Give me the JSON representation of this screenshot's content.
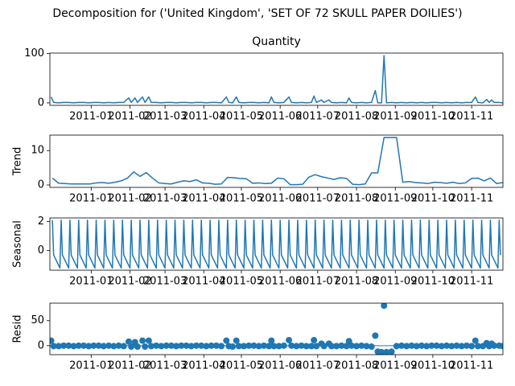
{
  "title": "Decomposition for ('United Kingdom', 'SET OF 72 SKULL PAPER  DOILIES')",
  "chart_data": [
    {
      "type": "line",
      "title": "Quantity",
      "color": "#1f77b4",
      "x": [
        -1,
        1,
        5,
        9,
        13,
        17,
        21,
        25,
        29,
        33,
        37,
        41,
        45,
        49,
        53,
        57,
        61,
        63,
        66,
        68,
        72,
        74,
        77,
        79,
        83,
        87,
        91,
        95,
        99,
        103,
        107,
        111,
        115,
        119,
        123,
        127,
        131,
        135,
        139,
        141,
        144,
        147,
        149,
        153,
        157,
        161,
        165,
        169,
        173,
        175,
        177,
        181,
        185,
        189,
        191,
        195,
        199,
        203,
        207,
        209,
        211,
        215,
        217,
        221,
        223,
        227,
        231,
        235,
        237,
        239,
        243,
        247,
        251,
        255,
        258,
        260,
        263,
        265,
        267,
        271,
        275,
        279,
        283,
        287,
        291,
        295,
        299,
        303,
        307,
        311,
        315,
        319,
        323,
        327,
        331,
        335,
        338,
        340,
        344,
        347,
        349,
        351,
        353,
        357,
        360
      ],
      "values": [
        12,
        1,
        0,
        1,
        1,
        0,
        1,
        1,
        0,
        1,
        1,
        0,
        1,
        0,
        1,
        1,
        10,
        1,
        10,
        1,
        12,
        1,
        12,
        1,
        1,
        0,
        1,
        1,
        0,
        1,
        1,
        0,
        1,
        1,
        0,
        1,
        1,
        0,
        12,
        1,
        0,
        12,
        1,
        0,
        1,
        1,
        0,
        1,
        0,
        12,
        1,
        0,
        1,
        12,
        1,
        0,
        1,
        0,
        1,
        14,
        1,
        6,
        1,
        6,
        1,
        0,
        1,
        0,
        10,
        1,
        0,
        1,
        0,
        1,
        25,
        0,
        0,
        96,
        0,
        1,
        0,
        1,
        0,
        1,
        0,
        1,
        0,
        1,
        1,
        0,
        1,
        0,
        1,
        0,
        1,
        1,
        12,
        1,
        0,
        7,
        1,
        6,
        1,
        1,
        0
      ],
      "xlim": [
        -2,
        360
      ],
      "ylim": [
        -5,
        101
      ],
      "yticks": [
        0,
        100
      ],
      "xticks": [
        {
          "value": 31,
          "label": "2011-01"
        },
        {
          "value": 62,
          "label": "2011-02"
        },
        {
          "value": 90,
          "label": "2011-03"
        },
        {
          "value": 121,
          "label": "2011-04"
        },
        {
          "value": 151,
          "label": "2011-05"
        },
        {
          "value": 182,
          "label": "2011-06"
        },
        {
          "value": 212,
          "label": "2011-07"
        },
        {
          "value": 243,
          "label": "2011-08"
        },
        {
          "value": 274,
          "label": "2011-09"
        },
        {
          "value": 304,
          "label": "2011-10"
        },
        {
          "value": 335,
          "label": "2011-11"
        }
      ]
    },
    {
      "type": "line",
      "ylabel": "Trend",
      "color": "#1f77b4",
      "x": [
        0,
        5,
        10,
        15,
        20,
        25,
        30,
        35,
        40,
        45,
        50,
        55,
        60,
        65,
        70,
        75,
        80,
        85,
        90,
        95,
        100,
        105,
        110,
        115,
        120,
        125,
        130,
        135,
        140,
        145,
        150,
        155,
        160,
        165,
        170,
        175,
        180,
        185,
        190,
        195,
        200,
        205,
        210,
        215,
        220,
        225,
        230,
        235,
        240,
        245,
        250,
        255,
        260,
        265,
        270,
        275,
        280,
        285,
        290,
        295,
        300,
        305,
        310,
        315,
        320,
        325,
        330,
        335,
        340,
        345,
        350,
        355,
        360
      ],
      "values": [
        2,
        0.5,
        0.4,
        0.3,
        0.3,
        0.3,
        0.3,
        0.6,
        0.7,
        0.5,
        0.8,
        1.2,
        2.0,
        3.8,
        2.5,
        3.6,
        2.0,
        0.6,
        0.4,
        0.3,
        0.8,
        1.2,
        1.0,
        1.5,
        0.6,
        0.5,
        0.2,
        0.3,
        2.2,
        2.1,
        1.9,
        1.8,
        0.5,
        0.6,
        0.4,
        0.5,
        2.0,
        1.8,
        0.1,
        0.1,
        0.2,
        2.3,
        3.0,
        2.4,
        2.0,
        1.6,
        2.1,
        1.9,
        0.2,
        0.1,
        0.3,
        3.5,
        3.5,
        13.8,
        13.8,
        13.8,
        0.8,
        1.0,
        0.7,
        0.6,
        0.4,
        0.8,
        0.7,
        0.5,
        0.8,
        0.4,
        0.6,
        1.9,
        2.0,
        1.2,
        2.0,
        0.4,
        0.7
      ],
      "xlim": [
        -2,
        360
      ],
      "ylim": [
        -0.7,
        14.5
      ],
      "yticks": [
        0,
        10
      ],
      "xticks": [
        {
          "value": 31,
          "label": "2011-01"
        },
        {
          "value": 62,
          "label": "2011-02"
        },
        {
          "value": 90,
          "label": "2011-03"
        },
        {
          "value": 121,
          "label": "2011-04"
        },
        {
          "value": 151,
          "label": "2011-05"
        },
        {
          "value": 182,
          "label": "2011-06"
        },
        {
          "value": 212,
          "label": "2011-07"
        },
        {
          "value": 243,
          "label": "2011-08"
        },
        {
          "value": 274,
          "label": "2011-09"
        },
        {
          "value": 304,
          "label": "2011-10"
        },
        {
          "value": 335,
          "label": "2011-11"
        }
      ]
    },
    {
      "type": "line",
      "ylabel": "Seasonal",
      "color": "#1f77b4",
      "x": [
        0,
        1,
        6,
        7,
        8,
        13,
        14,
        15,
        20,
        21,
        22,
        27,
        28,
        29,
        34,
        35,
        36,
        41,
        42,
        43,
        48,
        49,
        50,
        55,
        56,
        57,
        62,
        63,
        64,
        69,
        70,
        71,
        76,
        77,
        78,
        83,
        84,
        85,
        90,
        91,
        92,
        97,
        98,
        99,
        104,
        105,
        106,
        111,
        112,
        113,
        118,
        119,
        120,
        125,
        126,
        127,
        132,
        133,
        134,
        139,
        140,
        141,
        146,
        147,
        148,
        153,
        154,
        155,
        160,
        161,
        162,
        167,
        168,
        169,
        174,
        175,
        176,
        181,
        182,
        183,
        188,
        189,
        190,
        195,
        196,
        197,
        202,
        203,
        204,
        209,
        210,
        211,
        216,
        217,
        218,
        223,
        224,
        225,
        230,
        231,
        232,
        237,
        238,
        239,
        244,
        245,
        246,
        251,
        252,
        253,
        258,
        259,
        260,
        265,
        266,
        267,
        272,
        273,
        274,
        279,
        280,
        281,
        286,
        287,
        288,
        293,
        294,
        295,
        300,
        301,
        302,
        307,
        308,
        309,
        314,
        315,
        316,
        321,
        322,
        323,
        328,
        329,
        330,
        335,
        336,
        337,
        342,
        343,
        344,
        349,
        350,
        351,
        356,
        357,
        358
      ],
      "values": [
        2.1,
        -0.3,
        -1.2,
        2.1,
        -0.3,
        -1.2,
        2.1,
        -0.3,
        -1.2,
        2.1,
        -0.3,
        -1.2,
        2.1,
        -0.3,
        -1.2,
        2.1,
        -0.3,
        -1.2,
        2.1,
        -0.3,
        -1.2,
        2.1,
        -0.3,
        -1.2,
        2.1,
        -0.3,
        -1.2,
        2.1,
        -0.3,
        -1.2,
        2.1,
        -0.3,
        -1.2,
        2.1,
        -0.3,
        -1.2,
        2.1,
        -0.3,
        -1.2,
        2.1,
        -0.3,
        -1.2,
        2.1,
        -0.3,
        -1.2,
        2.1,
        -0.3,
        -1.2,
        2.1,
        -0.3,
        -1.2,
        2.1,
        -0.3,
        -1.2,
        2.1,
        -0.3,
        -1.2,
        2.1,
        -0.3,
        -1.2,
        2.1,
        -0.3,
        -1.2,
        2.1,
        -0.3,
        -1.2,
        2.1,
        -0.3,
        -1.2,
        2.1,
        -0.3,
        -1.2,
        2.1,
        -0.3,
        -1.2,
        2.1,
        -0.3,
        -1.2,
        2.1,
        -0.3,
        -1.2,
        2.1,
        -0.3,
        -1.2,
        2.1,
        -0.3,
        -1.2,
        2.1,
        -0.3,
        -1.2,
        2.1,
        -0.3,
        -1.2,
        2.1,
        -0.3,
        -1.2,
        2.1,
        -0.3,
        -1.2,
        2.1,
        -0.3,
        -1.2,
        2.1,
        -0.3,
        -1.2,
        2.1,
        -0.3,
        -1.2,
        2.1,
        -0.3,
        -1.2,
        2.1,
        -0.3,
        -1.2,
        2.1,
        -0.3,
        -1.2,
        2.1,
        -0.3,
        -1.2,
        2.1,
        -0.3,
        -1.2,
        2.1,
        -0.3,
        -1.2,
        2.1,
        -0.3,
        -1.2,
        2.1,
        -0.3,
        -1.2,
        2.1,
        -0.3,
        -1.2,
        2.1,
        -0.3,
        -1.2,
        2.1,
        -0.3,
        -1.2,
        2.1,
        -0.3,
        -1.2,
        2.1,
        -0.3,
        -1.2,
        2.1,
        -0.3,
        -1.2,
        2.1,
        -0.3,
        -1.2,
        2.1,
        -0.3
      ],
      "xlim": [
        -2,
        360
      ],
      "ylim": [
        -1.35,
        2.25
      ],
      "yticks": [
        0,
        2
      ],
      "xticks": [
        {
          "value": 31,
          "label": "2011-01"
        },
        {
          "value": 62,
          "label": "2011-02"
        },
        {
          "value": 90,
          "label": "2011-03"
        },
        {
          "value": 121,
          "label": "2011-04"
        },
        {
          "value": 151,
          "label": "2011-05"
        },
        {
          "value": 182,
          "label": "2011-06"
        },
        {
          "value": 212,
          "label": "2011-07"
        },
        {
          "value": 243,
          "label": "2011-08"
        },
        {
          "value": 274,
          "label": "2011-09"
        },
        {
          "value": 304,
          "label": "2011-10"
        },
        {
          "value": 335,
          "label": "2011-11"
        }
      ]
    },
    {
      "type": "scatter",
      "ylabel": "Resid",
      "color": "#1f77b4",
      "x": [
        -1,
        1,
        5,
        9,
        13,
        17,
        21,
        25,
        29,
        33,
        37,
        41,
        45,
        49,
        53,
        57,
        61,
        63,
        66,
        68,
        72,
        74,
        77,
        79,
        83,
        87,
        91,
        95,
        99,
        103,
        107,
        111,
        115,
        119,
        123,
        127,
        131,
        135,
        139,
        141,
        144,
        147,
        149,
        153,
        157,
        161,
        165,
        169,
        173,
        175,
        177,
        181,
        185,
        189,
        191,
        195,
        199,
        203,
        207,
        209,
        211,
        215,
        217,
        221,
        223,
        227,
        231,
        235,
        237,
        239,
        243,
        247,
        251,
        255,
        258,
        260,
        263,
        265,
        267,
        271,
        275,
        279,
        283,
        287,
        291,
        295,
        299,
        303,
        307,
        311,
        315,
        319,
        323,
        327,
        331,
        335,
        338,
        340,
        344,
        347,
        349,
        351,
        353,
        357,
        360
      ],
      "values": [
        10,
        -1,
        -1,
        0,
        0,
        -1,
        0,
        0,
        -1,
        0,
        0,
        -1,
        0,
        -1,
        0,
        -1,
        8,
        -2,
        7,
        -2,
        10,
        -2,
        10,
        -1,
        0,
        -1,
        0,
        0,
        -1,
        0,
        0,
        -1,
        0,
        0,
        -1,
        0,
        0,
        -1,
        10,
        -1,
        -2,
        10,
        -1,
        -1,
        0,
        0,
        -1,
        0,
        -1,
        10,
        -1,
        -1,
        0,
        11,
        0,
        -1,
        0,
        -1,
        -1,
        11,
        -1,
        4,
        -1,
        4,
        -1,
        -1,
        0,
        -1,
        9,
        0,
        -1,
        0,
        -1,
        -2,
        20,
        -12,
        -13,
        80,
        -13,
        -12,
        -1,
        0,
        -1,
        0,
        -1,
        0,
        -1,
        0,
        0,
        -1,
        0,
        -1,
        0,
        -1,
        0,
        -1,
        10,
        -1,
        -1,
        5,
        -1,
        4,
        0,
        0,
        -1
      ],
      "xlim": [
        -2,
        360
      ],
      "ylim": [
        -18,
        85
      ],
      "yticks": [
        0,
        50
      ],
      "xticks": [
        {
          "value": 31,
          "label": "2011-01"
        },
        {
          "value": 62,
          "label": "2011-02"
        },
        {
          "value": 90,
          "label": "2011-03"
        },
        {
          "value": 121,
          "label": "2011-04"
        },
        {
          "value": 151,
          "label": "2011-05"
        },
        {
          "value": 182,
          "label": "2011-06"
        },
        {
          "value": 212,
          "label": "2011-07"
        },
        {
          "value": 243,
          "label": "2011-08"
        },
        {
          "value": 274,
          "label": "2011-09"
        },
        {
          "value": 304,
          "label": "2011-10"
        },
        {
          "value": 335,
          "label": "2011-11"
        }
      ]
    }
  ]
}
